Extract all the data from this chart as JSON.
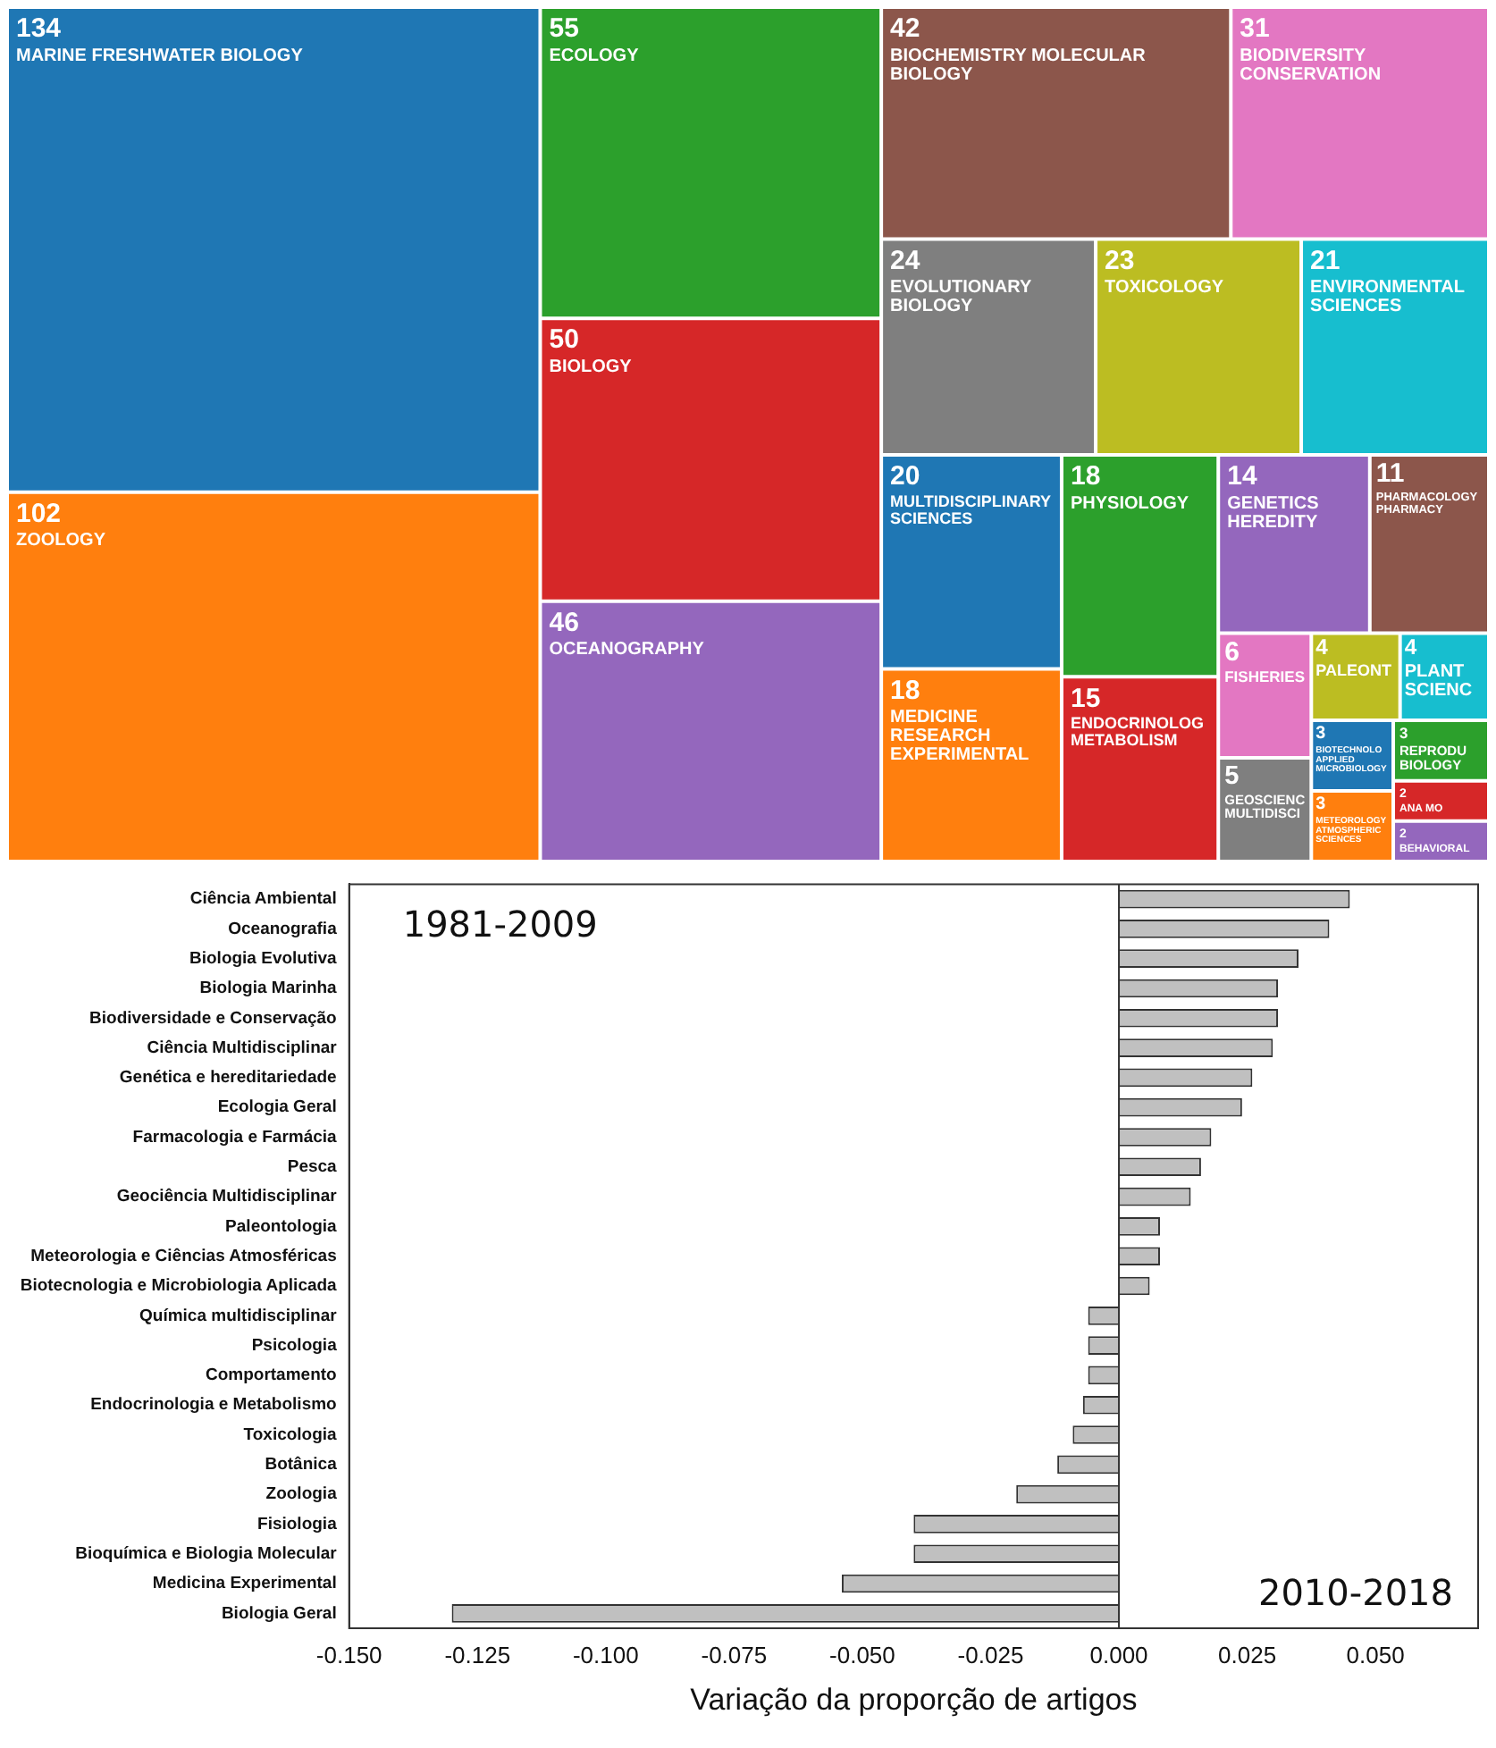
{
  "chart_data": [
    {
      "type": "other",
      "categories": [
        "MARINE FRESHWATER BIOLOGY",
        "ZOOLOGY",
        "ECOLOGY",
        "BIOLOGY",
        "OCEANOGRAPHY",
        "BIOCHEMISTRY MOLECULAR BIOLOGY",
        "BIODIVERSITY CONSERVATION",
        "EVOLUTIONARY BIOLOGY",
        "TOXICOLOGY",
        "ENVIRONMENTAL SCIENCES",
        "MULTIDISCIPLINARY SCIENCES",
        "MEDICINE RESEARCH EXPERIMENTAL",
        "PHYSIOLOGY",
        "ENDOCRINOLOG METABOLISM",
        "GENETICS HEREDITY",
        "PHARMACOLOGY PHARMACY",
        "FISHERIES",
        "GEOSCIENC MULTIDISCI",
        "PALEONT",
        "PLANT SCIENC",
        "BIOTECHNOLO APPLIED MICROBIOLOGY",
        "METEOROLOGY ATMOSPHERIC SCIENCES",
        "REPRODU BIOLOGY",
        "ANA MO",
        "BEHAVIORAL"
      ],
      "data_labels": true,
      "values": [
        134,
        102,
        55,
        50,
        46,
        42,
        31,
        24,
        23,
        21,
        20,
        18,
        18,
        15,
        14,
        11,
        6,
        5,
        4,
        4,
        3,
        3,
        3,
        2,
        2
      ],
      "colors": [
        "#1f77b4",
        "#ff7f0e",
        "#2ca02c",
        "#d62728",
        "#9467bd",
        "#8c564b",
        "#e377c2",
        "#7f7f7f",
        "#bcbd22",
        "#17becf",
        "#1f77b4",
        "#ff7f0e",
        "#2ca02c",
        "#d62728",
        "#9467bd",
        "#8c564b",
        "#e377c2",
        "#7f7f7f",
        "#bcbd22",
        "#17becf",
        "#1f77b4",
        "#ff7f0e",
        "#2ca02c",
        "#d62728",
        "#9467bd"
      ]
    },
    {
      "type": "bar",
      "orientation": "horizontal",
      "xlabel": "Variação da proporção de artigos",
      "categories": [
        "Ciência Ambiental",
        "Oceanografia",
        "Biologia Evolutiva",
        "Biologia Marinha",
        "Biodiversidade e Conservação",
        "Ciência Multidisciplinar",
        "Genética e hereditariedade",
        "Ecologia Geral",
        "Farmacologia e Farmácia",
        "Pesca",
        "Geociência Multidisciplinar",
        "Paleontologia",
        "Meteorologia e Ciências Atmosféricas",
        "Biotecnologia e Microbiologia Aplicada",
        "Química multidisciplinar",
        "Psicologia",
        "Comportamento",
        "Endocrinologia e Metabolismo",
        "Toxicologia",
        "Botânica",
        "Zoologia",
        "Fisiologia",
        "Bioquímica e Biologia Molecular",
        "Medicina Experimental",
        "Biologia Geral"
      ],
      "values": [
        0.045,
        0.041,
        0.035,
        0.031,
        0.031,
        0.03,
        0.026,
        0.024,
        0.018,
        0.016,
        0.014,
        0.008,
        0.008,
        0.006,
        -0.006,
        -0.006,
        -0.006,
        -0.007,
        -0.009,
        -0.012,
        -0.02,
        -0.04,
        -0.04,
        -0.054,
        -0.13
      ],
      "color": "#c0c0c0",
      "xlim": [
        -0.15,
        0.07
      ],
      "xticks": [
        {
          "value": -0.15,
          "label": "-0.150"
        },
        {
          "value": -0.125,
          "label": "-0.125"
        },
        {
          "value": -0.1,
          "label": "-0.100"
        },
        {
          "value": -0.075,
          "label": "-0.075"
        },
        {
          "value": -0.05,
          "label": "-0.050"
        },
        {
          "value": -0.025,
          "label": "-0.025"
        },
        {
          "value": 0,
          "label": "0.000"
        },
        {
          "value": 0.025,
          "label": "0.025"
        },
        {
          "value": 0.05,
          "label": "0.050"
        }
      ],
      "ref_lines": [
        {
          "axis": "x",
          "value": 0
        }
      ],
      "annotations": [
        "1981-2009",
        "2010-2018"
      ]
    }
  ]
}
